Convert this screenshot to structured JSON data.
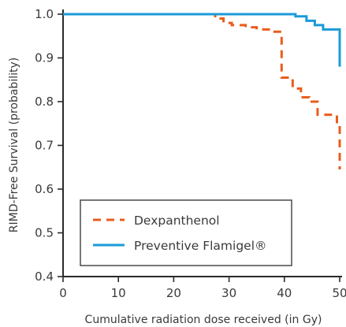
{
  "chart_data": {
    "type": "line",
    "title": "",
    "xlabel": "Cumulative radiation dose received (in Gy)",
    "ylabel": "RIMD-Free Survival (probability)",
    "xlim": [
      0,
      50
    ],
    "ylim": [
      0.4,
      1.0
    ],
    "x_ticks": [
      0,
      10,
      20,
      30,
      40,
      50
    ],
    "x_tick_labels": [
      "0",
      "10",
      "20",
      "30",
      "40",
      "50"
    ],
    "y_ticks": [
      0.4,
      0.5,
      0.6,
      0.7,
      0.8,
      0.9,
      1.0
    ],
    "y_tick_labels": [
      "0.4",
      "0.5",
      "0.6",
      "0.7",
      "0.8",
      "0.9",
      "1.0"
    ],
    "grid": false,
    "legend_position": "bottom-left",
    "series": [
      {
        "name": "Dexpanthenol",
        "color": "#e85d1c",
        "style": "dashed",
        "step": true,
        "x": [
          0,
          26,
          27.5,
          29,
          30.5,
          33,
          35,
          37.5,
          39.5,
          41.5,
          43,
          44.5,
          46,
          48,
          49.5,
          50
        ],
        "y": [
          1.0,
          1.0,
          0.99,
          0.98,
          0.975,
          0.97,
          0.965,
          0.96,
          0.855,
          0.83,
          0.81,
          0.8,
          0.77,
          0.77,
          0.75,
          0.645
        ]
      },
      {
        "name": "Preventive Flamigel®",
        "color": "#1a9bd7",
        "style": "solid",
        "step": true,
        "x": [
          0,
          32,
          42,
          44,
          45.5,
          47,
          50
        ],
        "y": [
          1.0,
          1.0,
          0.995,
          0.985,
          0.975,
          0.965,
          0.88
        ]
      }
    ]
  }
}
